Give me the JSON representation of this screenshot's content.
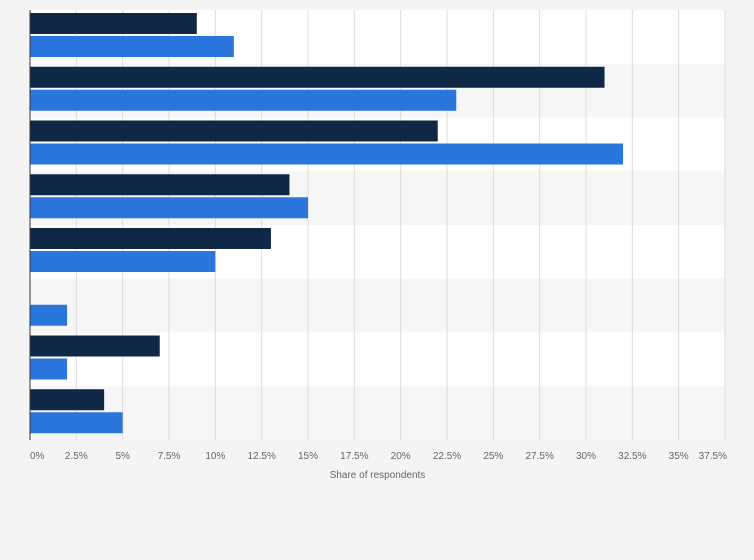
{
  "chart_data": {
    "type": "bar",
    "orientation": "horizontal",
    "categories": [
      "",
      "",
      "",
      "",
      "",
      "",
      "",
      ""
    ],
    "series": [
      {
        "color": "#0f2846",
        "values": [
          9,
          31,
          22,
          14,
          13,
          0,
          7,
          4
        ]
      },
      {
        "color": "#2a76dd",
        "values": [
          11,
          23,
          32,
          15,
          10,
          2,
          2,
          5
        ]
      }
    ],
    "xlabel": "Share of respondents",
    "ylabel": "",
    "title": "",
    "xlim": [
      0,
      37.5
    ],
    "x_ticks": [
      0,
      2.5,
      5,
      7.5,
      10,
      12.5,
      15,
      17.5,
      20,
      22.5,
      25,
      27.5,
      30,
      32.5,
      35,
      37.5
    ],
    "x_tick_labels": [
      "0%",
      "2.5%",
      "5%",
      "7.5%",
      "10%",
      "12.5%",
      "15%",
      "17.5%",
      "20%",
      "22.5%",
      "25%",
      "27.5%",
      "30%",
      "32.5%",
      "35%",
      "37.5%"
    ],
    "grid": true,
    "legend": "none"
  }
}
